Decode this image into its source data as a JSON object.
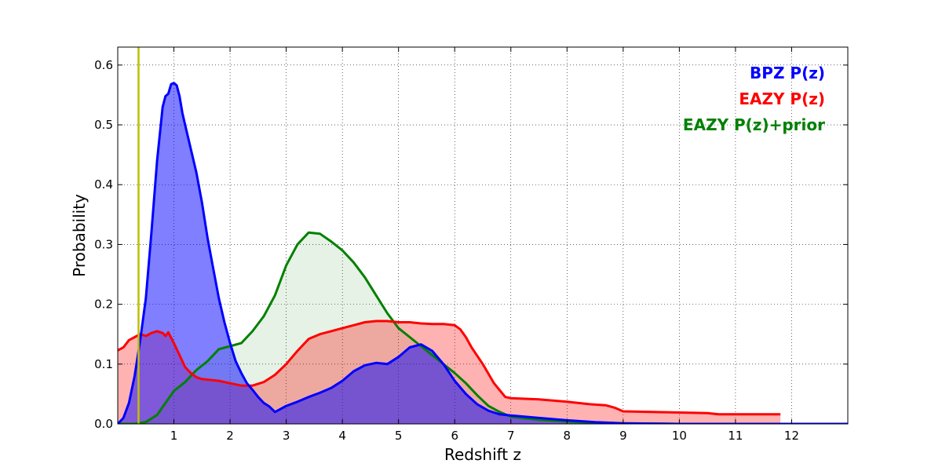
{
  "chart_data": {
    "type": "area",
    "xlabel": "Redshift z",
    "ylabel": "Probability",
    "xlim": [
      0,
      13
    ],
    "ylim": [
      0,
      0.63
    ],
    "x_ticks": [
      1,
      2,
      3,
      4,
      5,
      6,
      7,
      8,
      9,
      10,
      11,
      12
    ],
    "x_tick_labels": [
      "1",
      "2",
      "3",
      "4",
      "5",
      "6",
      "7",
      "8",
      "9",
      "10",
      "11",
      "12"
    ],
    "y_ticks": [
      0.0,
      0.1,
      0.2,
      0.3,
      0.4,
      0.5,
      0.6
    ],
    "y_tick_labels": [
      "0.0",
      "0.1",
      "0.2",
      "0.3",
      "0.4",
      "0.5",
      "0.6"
    ],
    "grid": true,
    "grid_style": "dotted",
    "legend_position": "top-right",
    "vertical_marker": {
      "x": 0.37,
      "color": "#bfbf00"
    },
    "series": [
      {
        "name": "EAZY P(z)+prior",
        "color": "#008000",
        "fill_color": "#008000",
        "fill_opacity": 0.1,
        "points": [
          [
            0,
            0
          ],
          [
            0.3,
            0
          ],
          [
            0.5,
            0.003
          ],
          [
            0.7,
            0.015
          ],
          [
            0.85,
            0.035
          ],
          [
            1.0,
            0.055
          ],
          [
            1.2,
            0.07
          ],
          [
            1.4,
            0.09
          ],
          [
            1.6,
            0.105
          ],
          [
            1.8,
            0.125
          ],
          [
            2.0,
            0.13
          ],
          [
            2.2,
            0.135
          ],
          [
            2.4,
            0.155
          ],
          [
            2.6,
            0.18
          ],
          [
            2.8,
            0.215
          ],
          [
            3.0,
            0.265
          ],
          [
            3.2,
            0.3
          ],
          [
            3.4,
            0.32
          ],
          [
            3.6,
            0.318
          ],
          [
            3.8,
            0.305
          ],
          [
            4.0,
            0.29
          ],
          [
            4.2,
            0.27
          ],
          [
            4.4,
            0.245
          ],
          [
            4.6,
            0.215
          ],
          [
            4.8,
            0.185
          ],
          [
            5.0,
            0.16
          ],
          [
            5.2,
            0.145
          ],
          [
            5.4,
            0.13
          ],
          [
            5.6,
            0.115
          ],
          [
            5.8,
            0.1
          ],
          [
            6.0,
            0.085
          ],
          [
            6.2,
            0.068
          ],
          [
            6.4,
            0.048
          ],
          [
            6.6,
            0.03
          ],
          [
            6.8,
            0.02
          ],
          [
            7.0,
            0.012
          ],
          [
            7.5,
            0.007
          ],
          [
            8.0,
            0.004
          ],
          [
            8.5,
            0.002
          ],
          [
            9.0,
            0.001
          ],
          [
            10.0,
            0
          ],
          [
            13.0,
            0
          ]
        ]
      },
      {
        "name": "EAZY P(z)",
        "color": "#ff0000",
        "fill_color": "#ff0000",
        "fill_opacity": 0.3,
        "points": [
          [
            0,
            0.123
          ],
          [
            0.1,
            0.128
          ],
          [
            0.2,
            0.14
          ],
          [
            0.3,
            0.145
          ],
          [
            0.4,
            0.15
          ],
          [
            0.5,
            0.147
          ],
          [
            0.6,
            0.152
          ],
          [
            0.7,
            0.155
          ],
          [
            0.8,
            0.152
          ],
          [
            0.85,
            0.147
          ],
          [
            0.9,
            0.153
          ],
          [
            1.0,
            0.135
          ],
          [
            1.1,
            0.115
          ],
          [
            1.2,
            0.095
          ],
          [
            1.3,
            0.085
          ],
          [
            1.4,
            0.078
          ],
          [
            1.5,
            0.075
          ],
          [
            1.6,
            0.074
          ],
          [
            1.8,
            0.072
          ],
          [
            2.0,
            0.068
          ],
          [
            2.2,
            0.064
          ],
          [
            2.4,
            0.064
          ],
          [
            2.6,
            0.07
          ],
          [
            2.8,
            0.082
          ],
          [
            3.0,
            0.1
          ],
          [
            3.2,
            0.122
          ],
          [
            3.4,
            0.142
          ],
          [
            3.6,
            0.15
          ],
          [
            3.8,
            0.155
          ],
          [
            4.0,
            0.16
          ],
          [
            4.2,
            0.165
          ],
          [
            4.4,
            0.17
          ],
          [
            4.6,
            0.172
          ],
          [
            4.8,
            0.172
          ],
          [
            5.0,
            0.17
          ],
          [
            5.2,
            0.17
          ],
          [
            5.4,
            0.168
          ],
          [
            5.6,
            0.167
          ],
          [
            5.8,
            0.167
          ],
          [
            6.0,
            0.165
          ],
          [
            6.1,
            0.158
          ],
          [
            6.2,
            0.145
          ],
          [
            6.3,
            0.128
          ],
          [
            6.5,
            0.1
          ],
          [
            6.7,
            0.068
          ],
          [
            6.9,
            0.045
          ],
          [
            7.0,
            0.043
          ],
          [
            7.5,
            0.041
          ],
          [
            8.0,
            0.037
          ],
          [
            8.4,
            0.033
          ],
          [
            8.7,
            0.031
          ],
          [
            8.85,
            0.027
          ],
          [
            9.0,
            0.021
          ],
          [
            9.5,
            0.02
          ],
          [
            10.0,
            0.019
          ],
          [
            10.5,
            0.018
          ],
          [
            10.7,
            0.016
          ],
          [
            11.0,
            0.016
          ],
          [
            11.5,
            0.016
          ],
          [
            11.8,
            0.016
          ]
        ]
      },
      {
        "name": "BPZ P(z)",
        "color": "#0000ff",
        "fill_color": "#0000ff",
        "fill_opacity": 0.5,
        "points": [
          [
            0,
            0
          ],
          [
            0.1,
            0.01
          ],
          [
            0.2,
            0.035
          ],
          [
            0.3,
            0.08
          ],
          [
            0.4,
            0.14
          ],
          [
            0.5,
            0.21
          ],
          [
            0.6,
            0.32
          ],
          [
            0.7,
            0.44
          ],
          [
            0.8,
            0.53
          ],
          [
            0.85,
            0.548
          ],
          [
            0.9,
            0.552
          ],
          [
            0.95,
            0.568
          ],
          [
            1.0,
            0.57
          ],
          [
            1.05,
            0.566
          ],
          [
            1.1,
            0.548
          ],
          [
            1.15,
            0.52
          ],
          [
            1.2,
            0.5
          ],
          [
            1.3,
            0.46
          ],
          [
            1.4,
            0.42
          ],
          [
            1.5,
            0.37
          ],
          [
            1.6,
            0.31
          ],
          [
            1.7,
            0.26
          ],
          [
            1.8,
            0.21
          ],
          [
            1.9,
            0.17
          ],
          [
            2.0,
            0.135
          ],
          [
            2.1,
            0.105
          ],
          [
            2.2,
            0.085
          ],
          [
            2.3,
            0.068
          ],
          [
            2.4,
            0.057
          ],
          [
            2.5,
            0.045
          ],
          [
            2.6,
            0.035
          ],
          [
            2.7,
            0.029
          ],
          [
            2.8,
            0.02
          ],
          [
            2.9,
            0.025
          ],
          [
            3.0,
            0.03
          ],
          [
            3.2,
            0.037
          ],
          [
            3.4,
            0.045
          ],
          [
            3.6,
            0.052
          ],
          [
            3.8,
            0.06
          ],
          [
            4.0,
            0.072
          ],
          [
            4.2,
            0.088
          ],
          [
            4.4,
            0.098
          ],
          [
            4.6,
            0.102
          ],
          [
            4.8,
            0.1
          ],
          [
            5.0,
            0.112
          ],
          [
            5.2,
            0.128
          ],
          [
            5.4,
            0.133
          ],
          [
            5.6,
            0.122
          ],
          [
            5.8,
            0.1
          ],
          [
            6.0,
            0.072
          ],
          [
            6.2,
            0.05
          ],
          [
            6.4,
            0.033
          ],
          [
            6.6,
            0.022
          ],
          [
            6.8,
            0.016
          ],
          [
            7.0,
            0.014
          ],
          [
            7.5,
            0.01
          ],
          [
            8.0,
            0.006
          ],
          [
            8.5,
            0.003
          ],
          [
            9.0,
            0.001
          ],
          [
            10.0,
            0
          ],
          [
            13.0,
            0
          ]
        ]
      }
    ]
  },
  "legend": [
    {
      "label": "BPZ P(z)",
      "color": "#0000ff"
    },
    {
      "label": "EAZY P(z)",
      "color": "#ff0000"
    },
    {
      "label": "EAZY P(z)+prior",
      "color": "#008000"
    }
  ]
}
